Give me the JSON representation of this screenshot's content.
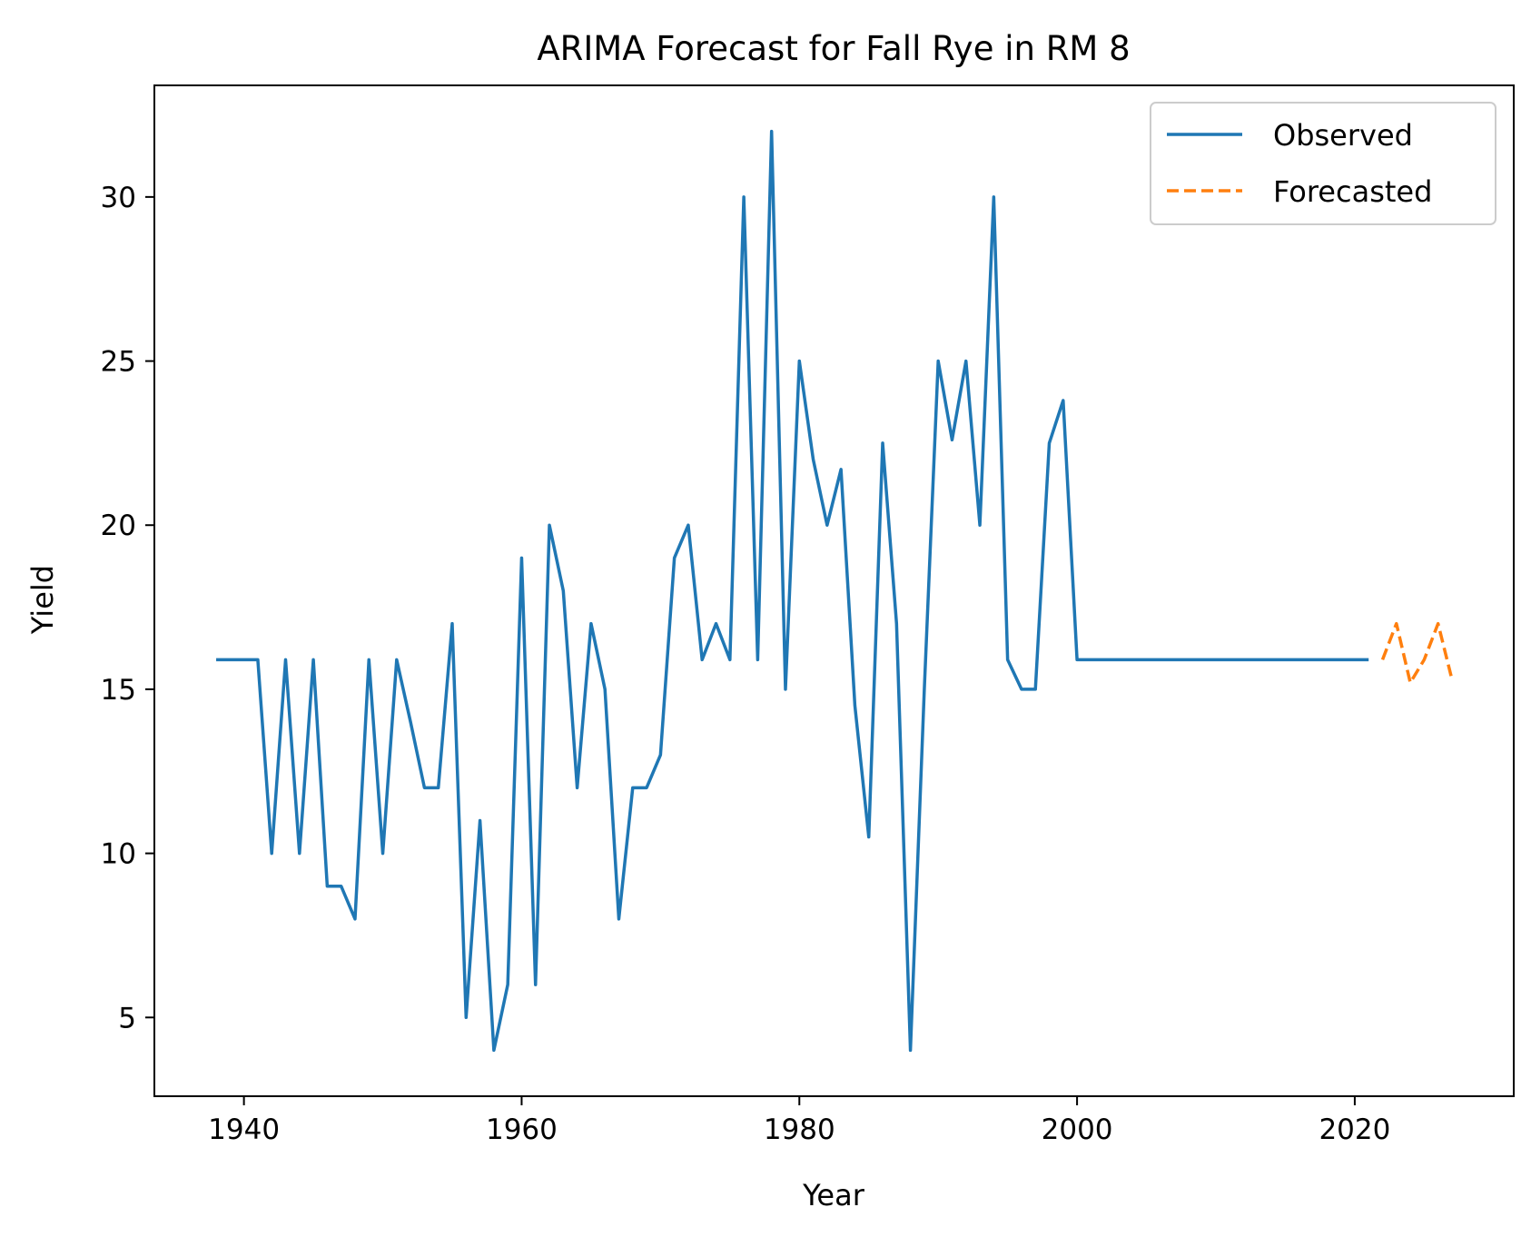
{
  "chart_data": {
    "type": "line",
    "title": "ARIMA Forecast for Fall Rye in RM 8",
    "xlabel": "Year",
    "ylabel": "Yield",
    "xlim": [
      1933.55,
      2031.45
    ],
    "ylim": [
      2.6,
      33.4
    ],
    "xticks": [
      1940,
      1960,
      1980,
      2000,
      2020
    ],
    "yticks": [
      5,
      10,
      15,
      20,
      25,
      30
    ],
    "grid": false,
    "legend_position": "top-right",
    "series": [
      {
        "name": "Observed",
        "color": "#1f77b4",
        "style": "solid",
        "x": [
          1938,
          1939,
          1940,
          1941,
          1942,
          1943,
          1944,
          1945,
          1946,
          1947,
          1948,
          1949,
          1950,
          1951,
          1952,
          1953,
          1954,
          1955,
          1956,
          1957,
          1958,
          1959,
          1960,
          1961,
          1962,
          1963,
          1964,
          1965,
          1966,
          1967,
          1968,
          1969,
          1970,
          1971,
          1972,
          1973,
          1974,
          1975,
          1976,
          1977,
          1978,
          1979,
          1980,
          1981,
          1982,
          1983,
          1984,
          1985,
          1986,
          1987,
          1988,
          1989,
          1990,
          1991,
          1992,
          1993,
          1994,
          1995,
          1996,
          1997,
          1998,
          1999,
          2000,
          2001,
          2002,
          2003,
          2004,
          2005,
          2006,
          2007,
          2008,
          2009,
          2010,
          2011,
          2012,
          2013,
          2014,
          2015,
          2016,
          2017,
          2018,
          2019,
          2020,
          2021
        ],
        "y": [
          15.9,
          15.9,
          15.9,
          15.9,
          10,
          15.9,
          10,
          15.9,
          9,
          9,
          8,
          15.9,
          10,
          15.9,
          14,
          12,
          12,
          17,
          5,
          11,
          4,
          6,
          19,
          6,
          20,
          18,
          12,
          17,
          15,
          8,
          12,
          12,
          13,
          19,
          20,
          15.9,
          17,
          15.9,
          30,
          15.9,
          32,
          15,
          25,
          22,
          20,
          21.7,
          14.5,
          10.5,
          22.5,
          17,
          4,
          15,
          25,
          22.6,
          25,
          20,
          30,
          15.9,
          15,
          15,
          22.5,
          23.8,
          15.9,
          15.9,
          15.9,
          15.9,
          15.9,
          15.9,
          15.9,
          15.9,
          15.9,
          15.9,
          15.9,
          15.9,
          15.9,
          15.9,
          15.9,
          15.9,
          15.9,
          15.9,
          15.9,
          15.9,
          15.9,
          15.9
        ]
      },
      {
        "name": "Forecasted",
        "color": "#ff7f0e",
        "style": "dashed",
        "x": [
          2022,
          2023,
          2024,
          2025,
          2026,
          2027
        ],
        "y": [
          15.9,
          17,
          15.2,
          15.9,
          17,
          15.3
        ]
      }
    ]
  }
}
